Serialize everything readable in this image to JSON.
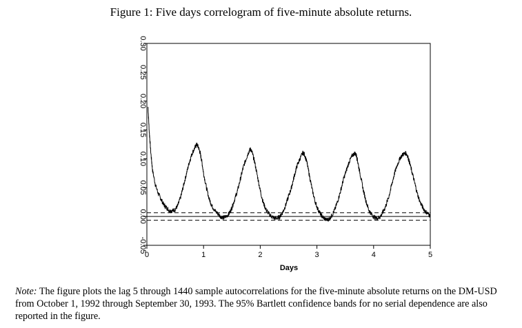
{
  "figure": {
    "title": "Figure 1: Five days correlogram of five-minute absolute returns.",
    "note_label": "Note:",
    "note_text": "The figure plots the lag 5 through 1440 sample autocorrelations for the five-minute absolute returns on the DM-USD from October 1, 1992 through September 30, 1993. The 95% Bartlett confidence bands for no serial dependence are also reported in the figure."
  },
  "chart_data": {
    "type": "line",
    "title": "",
    "xlabel": "Days",
    "ylabel": "",
    "xlim": [
      0,
      5
    ],
    "ylim": [
      -0.05,
      0.3
    ],
    "x_ticks": [
      0,
      1,
      2,
      3,
      4,
      5
    ],
    "x_tick_labels": [
      "0",
      "1",
      "2",
      "3",
      "4",
      "5"
    ],
    "y_ticks": [
      -0.05,
      0.0,
      0.05,
      0.1,
      0.15,
      0.2,
      0.25,
      0.3
    ],
    "y_tick_labels": [
      "-0.05",
      "0.00",
      "0.05",
      "0.10",
      "0.15",
      "0.20",
      "0.25",
      "0.30"
    ],
    "grid": false,
    "line_color": "#000000",
    "series": [
      {
        "x": [
          0.02,
          0.04,
          0.07,
          0.1,
          0.15,
          0.2,
          0.25,
          0.3,
          0.35,
          0.4,
          0.45,
          0.5,
          0.55,
          0.6,
          0.65,
          0.7,
          0.75,
          0.8,
          0.85,
          0.88,
          0.91,
          0.94,
          0.97,
          1.0,
          1.05,
          1.1,
          1.15,
          1.2,
          1.25,
          1.3,
          1.35,
          1.4,
          1.45,
          1.5,
          1.55,
          1.6,
          1.65,
          1.7,
          1.75,
          1.8,
          1.83,
          1.86,
          1.9,
          1.95,
          2.0,
          2.05,
          2.1,
          2.15,
          2.2,
          2.25,
          2.3,
          2.35,
          2.4,
          2.45,
          2.5,
          2.55,
          2.6,
          2.65,
          2.7,
          2.75,
          2.78,
          2.82,
          2.87,
          2.92,
          2.97,
          3.02,
          3.07,
          3.12,
          3.17,
          3.22,
          3.27,
          3.32,
          3.37,
          3.42,
          3.47,
          3.52,
          3.57,
          3.62,
          3.67,
          3.7,
          3.73,
          3.77,
          3.82,
          3.87,
          3.92,
          3.97,
          4.02,
          4.07,
          4.12,
          4.17,
          4.22,
          4.27,
          4.32,
          4.37,
          4.42,
          4.47,
          4.52,
          4.57,
          4.6,
          4.63,
          4.67,
          4.72,
          4.77,
          4.82,
          4.87,
          4.92,
          4.97,
          5.0
        ],
        "y": [
          0.19,
          0.15,
          0.11,
          0.08,
          0.055,
          0.04,
          0.03,
          0.02,
          0.015,
          0.01,
          0.01,
          0.012,
          0.02,
          0.035,
          0.055,
          0.075,
          0.095,
          0.11,
          0.12,
          0.125,
          0.12,
          0.11,
          0.095,
          0.075,
          0.05,
          0.03,
          0.018,
          0.01,
          0.005,
          0.0,
          -0.002,
          0.0,
          0.005,
          0.015,
          0.03,
          0.045,
          0.065,
          0.085,
          0.1,
          0.113,
          0.117,
          0.11,
          0.095,
          0.07,
          0.045,
          0.025,
          0.012,
          0.005,
          0.0,
          -0.003,
          -0.003,
          0.0,
          0.008,
          0.02,
          0.035,
          0.05,
          0.07,
          0.088,
          0.1,
          0.11,
          0.108,
          0.095,
          0.07,
          0.045,
          0.025,
          0.012,
          0.003,
          -0.003,
          -0.006,
          -0.004,
          0.003,
          0.013,
          0.028,
          0.045,
          0.065,
          0.08,
          0.095,
          0.105,
          0.11,
          0.105,
          0.09,
          0.07,
          0.045,
          0.025,
          0.01,
          0.003,
          -0.002,
          -0.003,
          0.0,
          0.008,
          0.02,
          0.035,
          0.055,
          0.075,
          0.09,
          0.102,
          0.108,
          0.11,
          0.105,
          0.095,
          0.08,
          0.06,
          0.04,
          0.025,
          0.015,
          0.008,
          0.004,
          0.0
        ]
      }
    ],
    "bands": [
      0.0065,
      -0.0065
    ],
    "band_style": "dashed"
  }
}
